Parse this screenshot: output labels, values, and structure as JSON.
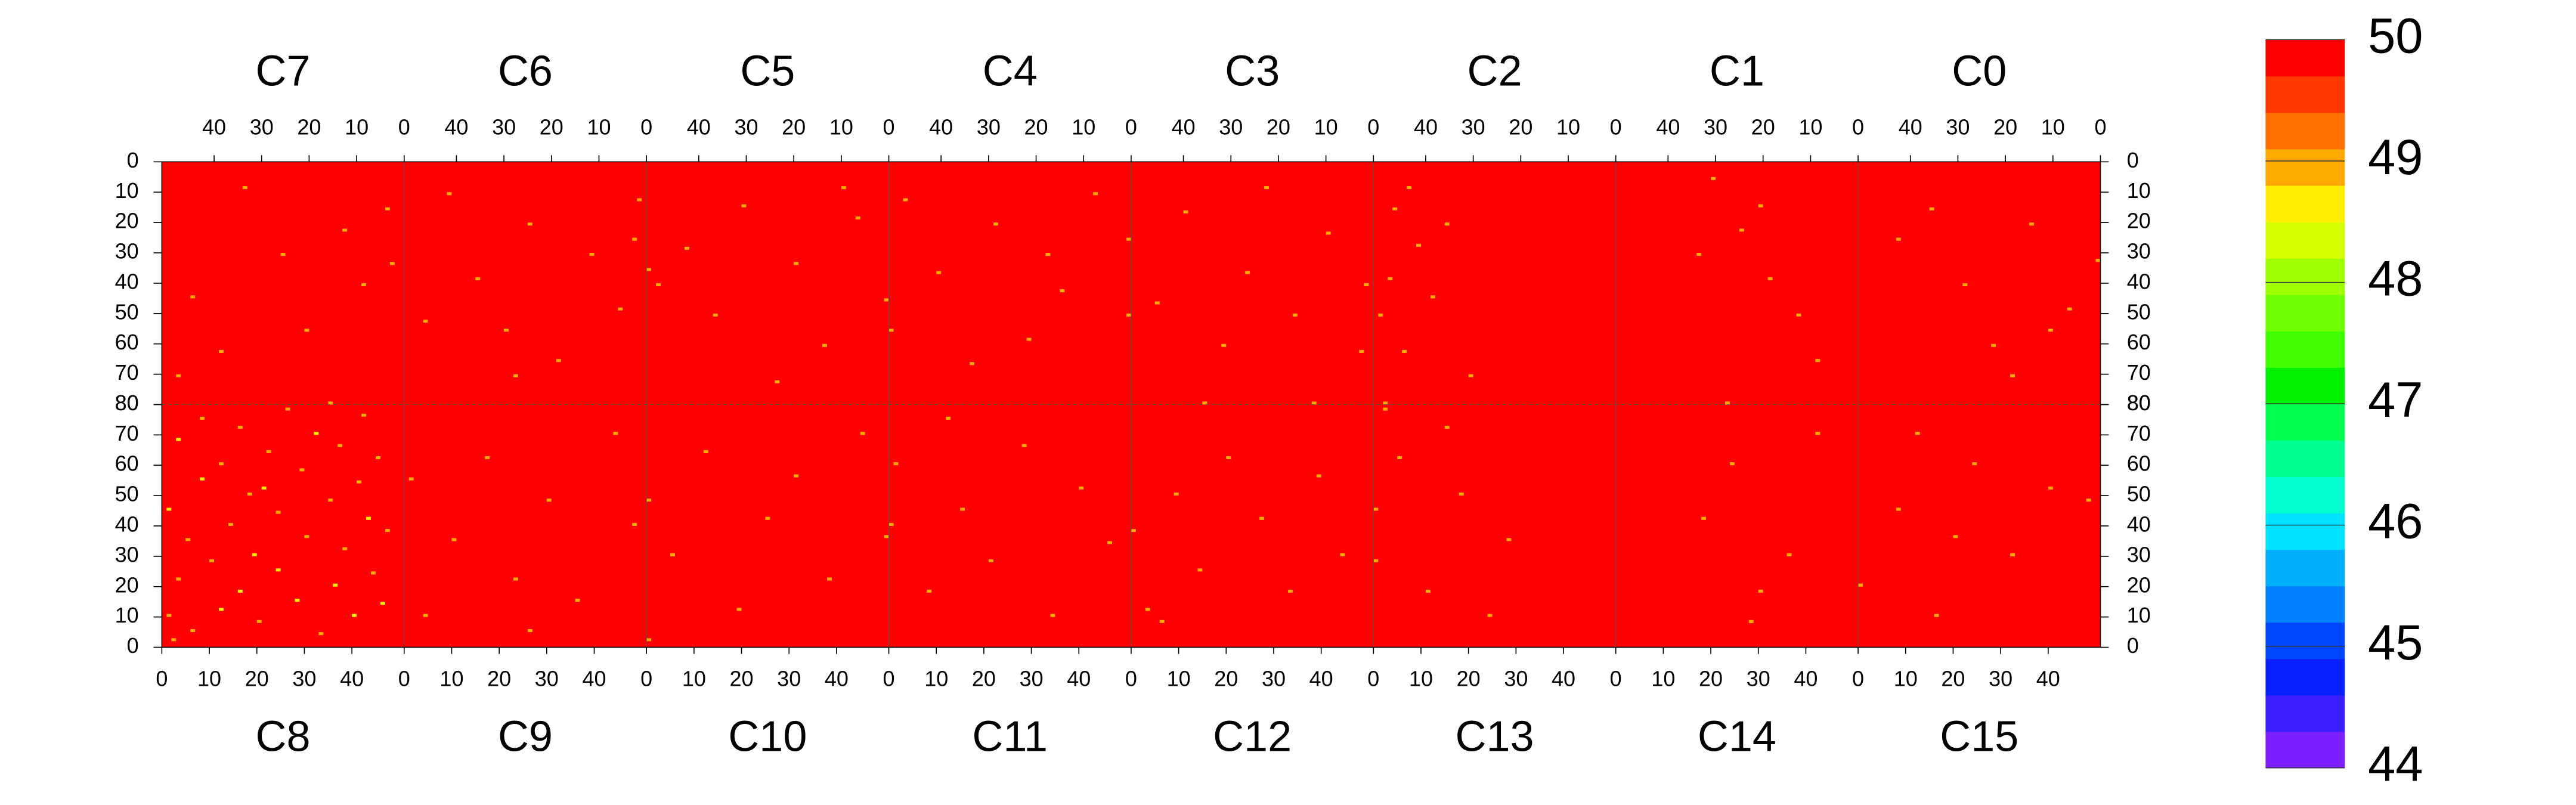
{
  "chart_data": {
    "type": "heatmap",
    "xlim": [
      0,
      51
    ],
    "ylim": [
      0,
      80
    ],
    "xticks": [
      0,
      10,
      20,
      30,
      40
    ],
    "yticks": [
      0,
      10,
      20,
      30,
      40,
      50,
      60,
      70,
      80
    ],
    "colorbar": {
      "lim": [
        44,
        50
      ],
      "ticks": [
        44,
        45,
        46,
        47,
        48,
        49,
        50
      ],
      "colors": [
        "#7a1fff",
        "#3a20ff",
        "#0a20ff",
        "#0048ff",
        "#0080ff",
        "#00b0ff",
        "#00e0ff",
        "#00ffd0",
        "#00ff90",
        "#00ff50",
        "#00f000",
        "#40ff00",
        "#70ff00",
        "#a0ff00",
        "#d8ff00",
        "#ffee00",
        "#ffaa00",
        "#ff7000",
        "#ff3800",
        "#ff0000"
      ]
    },
    "panels": [
      {
        "name": "C7",
        "default_value": 50,
        "x": [
          3,
          8,
          12,
          20,
          25,
          33,
          38,
          44,
          47,
          2,
          15
        ],
        "y": [
          15,
          40,
          22,
          55,
          30,
          8,
          62,
          44,
          70,
          33,
          79
        ],
        "values": [
          49,
          49,
          49,
          49,
          49,
          49,
          49,
          49,
          49,
          49,
          49
        ]
      },
      {
        "name": "C6",
        "default_value": 50,
        "x": [
          1,
          5,
          11,
          18,
          24,
          29,
          35,
          41,
          46,
          2,
          27
        ],
        "y": [
          12,
          48,
          30,
          65,
          20,
          55,
          38,
          10,
          52,
          25,
          70
        ],
        "values": [
          49,
          49,
          49,
          49,
          49,
          49,
          49,
          49,
          49,
          49,
          49
        ]
      },
      {
        "name": "C5",
        "default_value": 50,
        "x": [
          0,
          6,
          13,
          19,
          23,
          30,
          36,
          42,
          48,
          9,
          50
        ],
        "y": [
          45,
          18,
          60,
          33,
          72,
          14,
          50,
          28,
          40,
          8,
          35
        ],
        "values": [
          49,
          49,
          49,
          49,
          49,
          49,
          49,
          49,
          49,
          49,
          49
        ]
      },
      {
        "name": "C4",
        "default_value": 50,
        "x": [
          0,
          0,
          7,
          14,
          21,
          28,
          33,
          40,
          47,
          17,
          50
        ],
        "y": [
          25,
          50,
          10,
          42,
          58,
          20,
          66,
          36,
          12,
          30,
          55
        ],
        "values": [
          49,
          49,
          49,
          49,
          49,
          49,
          49,
          49,
          49,
          49,
          49
        ]
      },
      {
        "name": "C3",
        "default_value": 50,
        "x": [
          1,
          2,
          9,
          16,
          22,
          26,
          31,
          39,
          45,
          12,
          35
        ],
        "y": [
          40,
          62,
          23,
          50,
          8,
          36,
          60,
          16,
          46,
          79,
          79
        ],
        "values": [
          49,
          49,
          49,
          49,
          49,
          49,
          49,
          49,
          49,
          49,
          49
        ]
      },
      {
        "name": "C2",
        "default_value": 50,
        "x": [
          46,
          47,
          49,
          44,
          41,
          38,
          35,
          30,
          48,
          43
        ],
        "y": [
          15,
          38,
          50,
          62,
          27,
          44,
          20,
          70,
          79,
          8
        ],
        "values": [
          49,
          49,
          49,
          49,
          49,
          49,
          49,
          49,
          49,
          49
        ]
      },
      {
        "name": "C1",
        "default_value": 50,
        "x": [
          30,
          24,
          18,
          12,
          8,
          33,
          27,
          20
        ],
        "y": [
          5,
          22,
          38,
          50,
          65,
          30,
          79,
          14
        ],
        "values": [
          49,
          49,
          49,
          49,
          49,
          49,
          49,
          49
        ]
      },
      {
        "name": "C0",
        "default_value": 50,
        "x": [
          0,
          6,
          14,
          22,
          28,
          35,
          42,
          18,
          10
        ],
        "y": [
          32,
          48,
          20,
          60,
          40,
          15,
          25,
          70,
          55
        ],
        "values": [
          49,
          49,
          49,
          49,
          49,
          49,
          49,
          49,
          49
        ]
      },
      {
        "name": "C8",
        "default_value": 50,
        "x": [
          1,
          1,
          3,
          3,
          5,
          6,
          8,
          8,
          10,
          12,
          12,
          14,
          16,
          16,
          18,
          19,
          20,
          22,
          24,
          24,
          26,
          28,
          29,
          30,
          32,
          33,
          35,
          36,
          37,
          38,
          40,
          41,
          42,
          43,
          44,
          45,
          46,
          47,
          2,
          21
        ],
        "y": [
          10,
          45,
          22,
          68,
          35,
          5,
          55,
          75,
          28,
          12,
          60,
          40,
          18,
          72,
          50,
          30,
          8,
          64,
          25,
          44,
          78,
          15,
          58,
          36,
          70,
          4,
          48,
          20,
          66,
          32,
          10,
          54,
          76,
          42,
          24,
          62,
          14,
          38,
          2,
          52
        ],
        "values": [
          49,
          48.6,
          49,
          48.6,
          49,
          49,
          48.6,
          49,
          49,
          48.6,
          49,
          49,
          48.6,
          49,
          49,
          48.6,
          49,
          49,
          48.6,
          49,
          49,
          48.6,
          49,
          49,
          48.6,
          49,
          49,
          48.6,
          49,
          49,
          48.6,
          49,
          49,
          48.6,
          49,
          49,
          48.6,
          49,
          49,
          48.6
        ]
      },
      {
        "name": "C9",
        "default_value": 50,
        "x": [
          1,
          4,
          10,
          17,
          23,
          30,
          36,
          44,
          48,
          26
        ],
        "y": [
          55,
          10,
          35,
          62,
          22,
          48,
          15,
          70,
          40,
          5
        ],
        "values": [
          49,
          49,
          49,
          49,
          49,
          49,
          49,
          49,
          49,
          49
        ]
      },
      {
        "name": "C10",
        "default_value": 50,
        "x": [
          0,
          0,
          5,
          12,
          19,
          25,
          31,
          38,
          45,
          50
        ],
        "y": [
          2,
          48,
          30,
          64,
          12,
          42,
          56,
          22,
          70,
          36
        ],
        "values": [
          49,
          49,
          49,
          49,
          49,
          49,
          49,
          49,
          49,
          49
        ]
      },
      {
        "name": "C11",
        "default_value": 50,
        "x": [
          0,
          1,
          8,
          15,
          21,
          28,
          34,
          40,
          46,
          12
        ],
        "y": [
          40,
          60,
          18,
          45,
          28,
          66,
          10,
          52,
          34,
          75
        ],
        "values": [
          49,
          49,
          49,
          49,
          49,
          49,
          49,
          49,
          49,
          49
        ]
      },
      {
        "name": "C12",
        "default_value": 50,
        "x": [
          0,
          3,
          9,
          14,
          20,
          27,
          33,
          39,
          44,
          6
        ],
        "y": [
          38,
          12,
          50,
          25,
          62,
          42,
          18,
          56,
          30,
          8
        ],
        "values": [
          49,
          49,
          49,
          49,
          49,
          49,
          49,
          49,
          49,
          49
        ]
      },
      {
        "name": "C13",
        "default_value": 50,
        "x": [
          0,
          0,
          5,
          11,
          18,
          24,
          28,
          2,
          15
        ],
        "y": [
          45,
          28,
          62,
          18,
          50,
          10,
          35,
          78,
          72
        ],
        "values": [
          49,
          49,
          49,
          49,
          49,
          49,
          49,
          49,
          49
        ]
      },
      {
        "name": "C14",
        "default_value": 50,
        "x": [
          18,
          24,
          30,
          36,
          42,
          28
        ],
        "y": [
          42,
          60,
          18,
          30,
          70,
          8
        ],
        "values": [
          49,
          49,
          49,
          49,
          49,
          49
        ]
      },
      {
        "name": "C15",
        "default_value": 50,
        "x": [
          0,
          8,
          16,
          24,
          32,
          40,
          48,
          12,
          20
        ],
        "y": [
          20,
          45,
          10,
          60,
          30,
          52,
          48,
          70,
          36
        ],
        "values": [
          49,
          49,
          49,
          49,
          49,
          49,
          49,
          49,
          49
        ]
      }
    ]
  }
}
